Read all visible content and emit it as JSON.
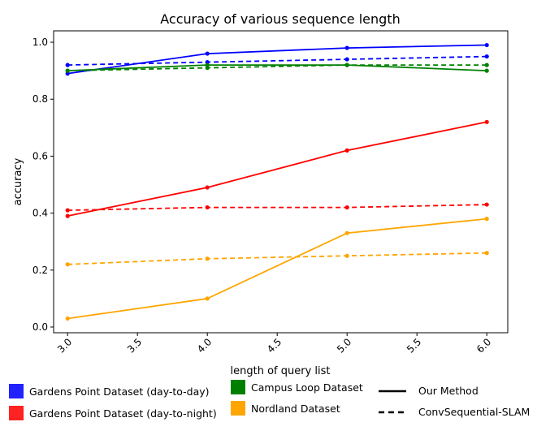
{
  "chart_data": {
    "type": "line",
    "title": "Accuracy of various sequence length",
    "xlabel": "length of query list",
    "ylabel": "accuracy",
    "xlim": [
      2.9,
      6.15
    ],
    "ylim": [
      -0.02,
      1.04
    ],
    "xticks": [
      "3.0",
      "3.5",
      "4.0",
      "4.5",
      "5.0",
      "5.5",
      "6.0"
    ],
    "yticks": [
      "0.0",
      "0.2",
      "0.4",
      "0.6",
      "0.8",
      "1.0"
    ],
    "x": [
      3.0,
      4.0,
      5.0,
      6.0
    ],
    "grid": false,
    "legend_position": "bottom",
    "series": [
      {
        "dataset": "Gardens Point Dataset (day-to-day)",
        "method": "Our Method",
        "color": "#0000ff",
        "dash": false,
        "values": [
          0.89,
          0.96,
          0.98,
          0.99
        ]
      },
      {
        "dataset": "Gardens Point Dataset (day-to-day)",
        "method": "ConvSequential-SLAM",
        "color": "#0000ff",
        "dash": true,
        "values": [
          0.92,
          0.93,
          0.94,
          0.95
        ]
      },
      {
        "dataset": "Campus Loop Dataset",
        "method": "Our Method",
        "color": "#008000",
        "dash": false,
        "values": [
          0.9,
          0.92,
          0.92,
          0.9
        ]
      },
      {
        "dataset": "Campus Loop Dataset",
        "method": "ConvSequential-SLAM",
        "color": "#008000",
        "dash": true,
        "values": [
          0.9,
          0.91,
          0.92,
          0.92
        ]
      },
      {
        "dataset": "Gardens Point Dataset (day-to-night)",
        "method": "Our Method",
        "color": "#ff0000",
        "dash": false,
        "values": [
          0.39,
          0.49,
          0.62,
          0.72
        ]
      },
      {
        "dataset": "Gardens Point Dataset (day-to-night)",
        "method": "ConvSequential-SLAM",
        "color": "#ff0000",
        "dash": true,
        "values": [
          0.41,
          0.42,
          0.42,
          0.43
        ]
      },
      {
        "dataset": "Nordland Dataset",
        "method": "Our Method",
        "color": "#ffa500",
        "dash": false,
        "values": [
          0.03,
          0.1,
          0.33,
          0.38
        ]
      },
      {
        "dataset": "Nordland Dataset",
        "method": "ConvSequential-SLAM",
        "color": "#ffa500",
        "dash": true,
        "values": [
          0.22,
          0.24,
          0.25,
          0.26
        ]
      }
    ],
    "legend": {
      "datasets": [
        {
          "label": "Gardens Point Dataset (day-to-day)",
          "color": "#2222ff"
        },
        {
          "label": "Gardens Point Dataset (day-to-night)",
          "color": "#ff2222"
        },
        {
          "label": "Campus Loop Dataset",
          "color": "#008000"
        },
        {
          "label": "Nordland Dataset",
          "color": "#ffa500"
        }
      ],
      "methods": [
        {
          "label": "Our Method",
          "dash": false
        },
        {
          "label": "ConvSequential-SLAM",
          "dash": true
        }
      ]
    }
  }
}
